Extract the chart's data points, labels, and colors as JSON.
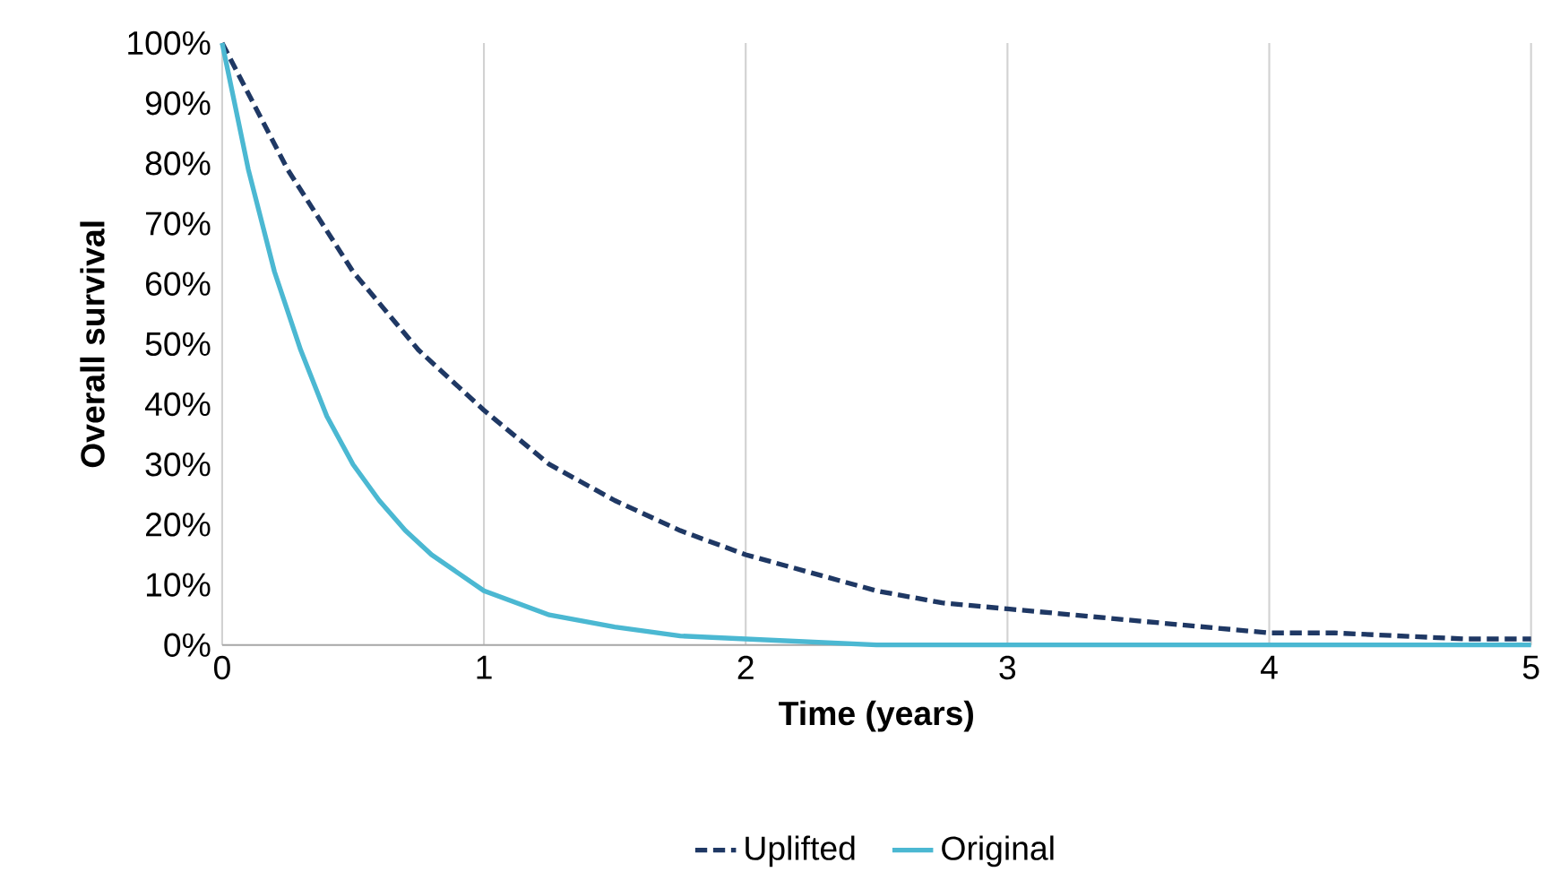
{
  "chart_data": {
    "type": "line",
    "xlabel": "Time (years)",
    "ylabel": "Overall survival",
    "xlim": [
      0,
      5
    ],
    "xticks": [
      0,
      1,
      2,
      3,
      4,
      5
    ],
    "ylim": [
      0,
      100
    ],
    "yticks": [
      {
        "value": 0,
        "label": "0%"
      },
      {
        "value": 10,
        "label": "10%"
      },
      {
        "value": 20,
        "label": "20%"
      },
      {
        "value": 30,
        "label": "30%"
      },
      {
        "value": 40,
        "label": "40%"
      },
      {
        "value": 50,
        "label": "50%"
      },
      {
        "value": 60,
        "label": "60%"
      },
      {
        "value": 70,
        "label": "70%"
      },
      {
        "value": 80,
        "label": "80%"
      },
      {
        "value": 90,
        "label": "90%"
      },
      {
        "value": 100,
        "label": "100%"
      }
    ],
    "grid": "x",
    "legend": "bottom",
    "marker": "none",
    "series": [
      {
        "name": "Uplifted",
        "color": "#1f3864",
        "line_style": "dashed",
        "x": [
          0,
          0.25,
          0.5,
          0.75,
          1,
          1.25,
          1.5,
          1.75,
          2,
          2.25,
          2.5,
          2.75,
          3,
          3.25,
          3.5,
          3.75,
          4,
          4.25,
          4.5,
          4.75,
          5
        ],
        "values": [
          100,
          79,
          62,
          49,
          39,
          30,
          24,
          19,
          15,
          12,
          9,
          7,
          6,
          5,
          4,
          3,
          2,
          2,
          1.5,
          1,
          1
        ]
      },
      {
        "name": "Original",
        "color": "#4bb8d2",
        "line_style": "solid",
        "x": [
          0,
          0.1,
          0.2,
          0.3,
          0.4,
          0.5,
          0.6,
          0.7,
          0.8,
          0.9,
          1,
          1.25,
          1.5,
          1.75,
          2,
          2.5,
          3,
          4,
          5
        ],
        "values": [
          100,
          79,
          62,
          49,
          38,
          30,
          24,
          19,
          15,
          12,
          9,
          5,
          3,
          1.5,
          1,
          0,
          0,
          0,
          0
        ]
      }
    ]
  }
}
